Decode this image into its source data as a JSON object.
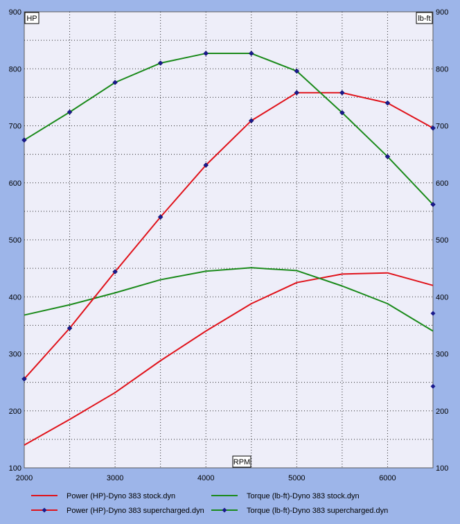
{
  "chart_data": {
    "type": "line",
    "axis_tags": {
      "left": "HP",
      "right": "lb-ft",
      "bottom": "RPM"
    },
    "x": [
      2000,
      2500,
      3000,
      3500,
      4000,
      4500,
      5000,
      5500,
      6000,
      6500
    ],
    "xlim": [
      2000,
      6500
    ],
    "ylim": [
      100,
      900
    ],
    "x_ticks": [
      2000,
      3000,
      4000,
      5000,
      6000
    ],
    "y_ticks": [
      100,
      200,
      300,
      400,
      500,
      600,
      700,
      800,
      900
    ],
    "grid": true,
    "legend_position": "bottom",
    "series": [
      {
        "name": "Power (HP)-Dyno 383 stock.dyn",
        "color": "#e0121a",
        "markers": false,
        "values": [
          140,
          185,
          232,
          288,
          340,
          388,
          425,
          440,
          442,
          420
        ]
      },
      {
        "name": "Torque (lb-ft)-Dyno 383 stock.dyn",
        "color": "#1a8a1a",
        "markers": false,
        "values": [
          368,
          386,
          407,
          430,
          445,
          451,
          446,
          419,
          388,
          340
        ]
      },
      {
        "name": "Power (HP)-Dyno 383 supercharged.dyn",
        "color": "#e0121a",
        "markers": true,
        "values": [
          256,
          345,
          444,
          540,
          631,
          709,
          758,
          758,
          740,
          696
        ]
      },
      {
        "name": "Torque (lb-ft)-Dyno 383 supercharged.dyn",
        "color": "#1a8a1a",
        "markers": true,
        "values": [
          675,
          724,
          776,
          810,
          827,
          827,
          796,
          723,
          646,
          562
        ]
      }
    ],
    "extra_points": [
      {
        "x": 6500,
        "y": 371,
        "color": "#1a8a1a"
      },
      {
        "x": 6500,
        "y": 243,
        "color": "#e0121a"
      }
    ]
  }
}
